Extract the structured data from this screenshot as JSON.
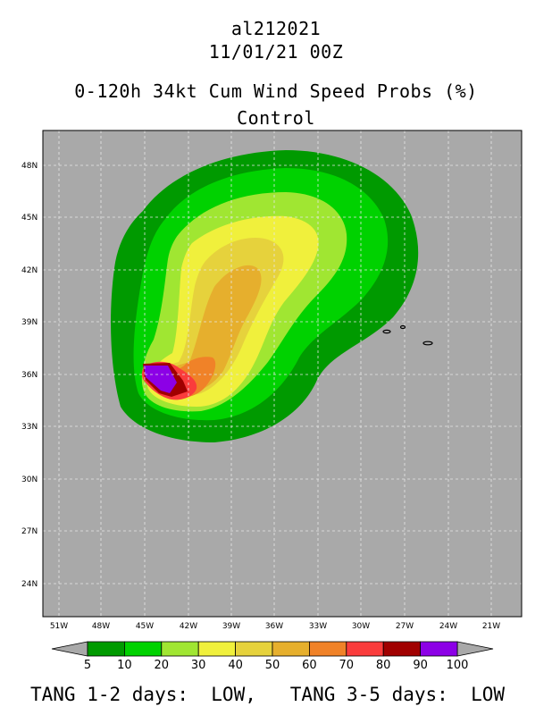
{
  "header": {
    "storm_id": "al212021",
    "datetime": "11/01/21 00Z",
    "product": "0-120h 34kt Cum Wind Speed Probs (%)",
    "run": "Control"
  },
  "map": {
    "lat_labels": [
      "48N",
      "45N",
      "42N",
      "39N",
      "36N",
      "33N",
      "30N",
      "27N",
      "24N"
    ],
    "lon_labels": [
      "51W",
      "48W",
      "45W",
      "42W",
      "39W",
      "36W",
      "33W",
      "30W",
      "27W",
      "24W",
      "21W"
    ],
    "colors": {
      "background": "#a9a9a9",
      "grid": "#e6e6e6",
      "p5": "#009a00",
      "p10": "#00d200",
      "p20": "#a0e632",
      "p30": "#f0f03c",
      "p40": "#e6d23c",
      "p50": "#e6af2d",
      "p60": "#f08228",
      "p70": "#fa3c3c",
      "p80": "#a00000",
      "p90": "#8c00e6",
      "land_outline": "#000000"
    }
  },
  "legend": {
    "levels": [
      "5",
      "10",
      "20",
      "30",
      "40",
      "50",
      "60",
      "70",
      "80",
      "90",
      "100"
    ],
    "colors": [
      "#009a00",
      "#00d200",
      "#a0e632",
      "#f0f03c",
      "#e6d23c",
      "#e6af2d",
      "#f08228",
      "#fa3c3c",
      "#a00000",
      "#8c00e6"
    ]
  },
  "footer": {
    "text": "TANG 1-2 days:  LOW,   TANG 3-5 days:  LOW"
  }
}
